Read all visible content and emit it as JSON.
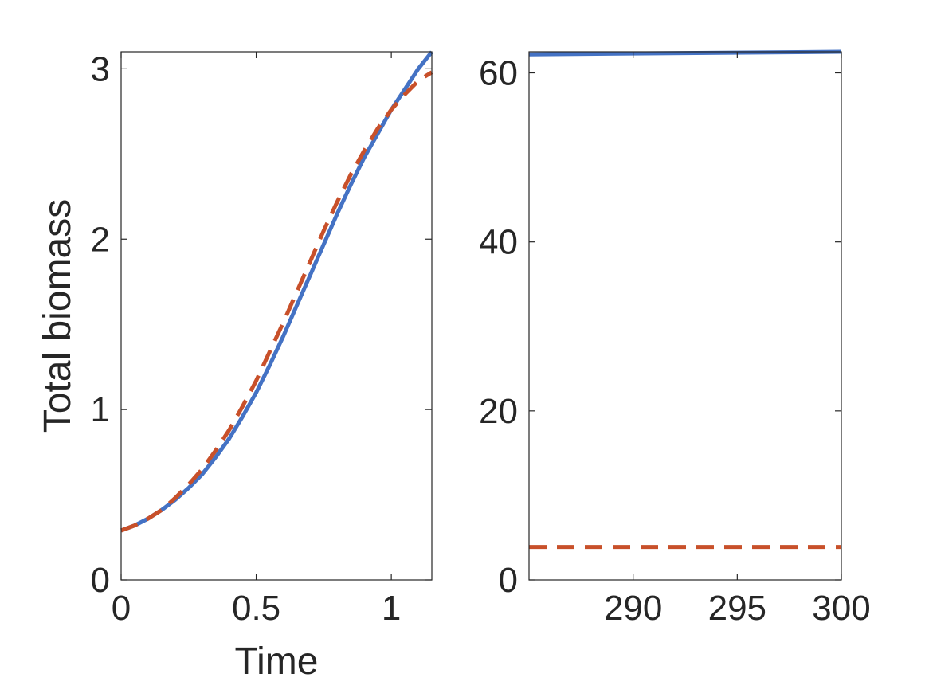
{
  "chart_data": [
    {
      "type": "line",
      "title": "",
      "xlabel": "Time",
      "ylabel": "Total biomass",
      "xlim": [
        0,
        1.15
      ],
      "ylim": [
        0,
        3.1
      ],
      "xticks": [
        0,
        0.5,
        1
      ],
      "xtick_labels": [
        "0",
        "0.5",
        "1"
      ],
      "yticks": [
        0,
        1,
        2,
        3
      ],
      "ytick_labels": [
        "0",
        "1",
        "2",
        "3"
      ],
      "grid": false,
      "series": [
        {
          "color": "#4472c4",
          "style": "solid",
          "x": [
            0,
            0.05,
            0.1,
            0.15,
            0.2,
            0.25,
            0.3,
            0.35,
            0.4,
            0.45,
            0.5,
            0.55,
            0.6,
            0.65,
            0.7,
            0.75,
            0.8,
            0.85,
            0.9,
            0.95,
            1.0,
            1.05,
            1.1,
            1.15
          ],
          "y": [
            0.29,
            0.32,
            0.36,
            0.41,
            0.47,
            0.54,
            0.62,
            0.72,
            0.83,
            0.96,
            1.1,
            1.26,
            1.43,
            1.61,
            1.79,
            1.97,
            2.15,
            2.32,
            2.48,
            2.62,
            2.76,
            2.88,
            3.0,
            3.1
          ]
        },
        {
          "color": "#c8502a",
          "style": "dashed",
          "x": [
            0,
            0.05,
            0.1,
            0.15,
            0.2,
            0.25,
            0.3,
            0.35,
            0.4,
            0.45,
            0.5,
            0.55,
            0.6,
            0.65,
            0.7,
            0.75,
            0.8,
            0.85,
            0.9,
            0.95,
            1.0,
            1.05,
            1.1,
            1.15
          ],
          "y": [
            0.29,
            0.32,
            0.36,
            0.41,
            0.48,
            0.56,
            0.65,
            0.76,
            0.88,
            1.02,
            1.17,
            1.34,
            1.51,
            1.69,
            1.87,
            2.05,
            2.22,
            2.38,
            2.52,
            2.65,
            2.76,
            2.85,
            2.93,
            2.98
          ]
        }
      ]
    },
    {
      "type": "line",
      "title": "",
      "xlabel": "",
      "ylabel": "",
      "xlim": [
        285,
        300
      ],
      "ylim": [
        0,
        62.5
      ],
      "xticks": [
        290,
        295,
        300
      ],
      "xtick_labels": [
        "290",
        "295",
        "300"
      ],
      "yticks": [
        0,
        20,
        40,
        60
      ],
      "ytick_labels": [
        "0",
        "20",
        "40",
        "60"
      ],
      "grid": false,
      "series": [
        {
          "color": "#4472c4",
          "style": "solid",
          "x": [
            285,
            300
          ],
          "y": [
            62.2,
            62.5
          ]
        },
        {
          "color": "#c8502a",
          "style": "dashed",
          "x": [
            285,
            300
          ],
          "y": [
            3.9,
            3.9
          ]
        }
      ]
    }
  ]
}
